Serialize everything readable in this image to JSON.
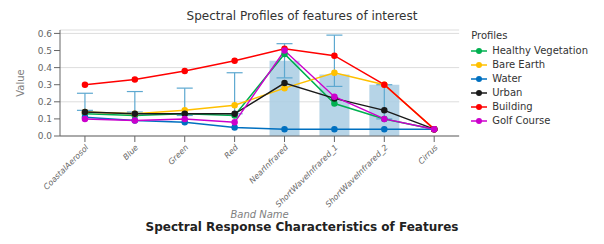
{
  "chart_data": {
    "type": "bar",
    "title": "Spectral Profiles of features of interest",
    "xlabel": "Band Name",
    "ylabel": "Value",
    "footer": "Spectral Response Characteristics of Features",
    "categories": [
      "CoastalAerosol",
      "Blue",
      "Green",
      "Red",
      "NearInfrared",
      "ShortWaveInfrared_1",
      "ShortWaveInfrared_2",
      "Cirrus"
    ],
    "values": [
      0.0,
      0.0,
      0.0,
      0.0,
      0.44,
      0.36,
      0.3,
      0.0
    ],
    "color": "#a9cce3",
    "error_bars": {
      "centers": [
        0.2,
        0.2,
        0.2,
        0.25,
        0.44,
        0.44,
        0.2,
        null
      ],
      "minus": [
        0.05,
        0.06,
        0.08,
        0.12,
        0.1,
        0.15,
        0.1,
        null
      ],
      "plus": [
        0.05,
        0.06,
        0.08,
        0.12,
        0.1,
        0.15,
        0.1,
        null
      ],
      "color": "#5da8d0"
    },
    "series": [
      {
        "name": "Healthy Vegetation",
        "type": "line",
        "marker": "o",
        "color": "#00b050",
        "values": [
          0.13,
          0.12,
          0.13,
          0.12,
          0.48,
          0.19,
          0.1,
          0.04
        ]
      },
      {
        "name": "Bare Earth",
        "type": "line",
        "marker": "o",
        "color": "#ffc000",
        "values": [
          0.14,
          0.13,
          0.15,
          0.18,
          0.28,
          0.37,
          0.3,
          0.04
        ]
      },
      {
        "name": "Water",
        "type": "line",
        "marker": "o",
        "color": "#0070c0",
        "values": [
          0.11,
          0.09,
          0.08,
          0.05,
          0.04,
          0.04,
          0.04,
          0.04
        ]
      },
      {
        "name": "Urban",
        "type": "line",
        "marker": "o",
        "color": "#1a1a1a",
        "values": [
          0.14,
          0.13,
          0.13,
          0.13,
          0.31,
          0.22,
          0.15,
          0.04
        ]
      },
      {
        "name": "Building",
        "type": "line",
        "marker": "o",
        "color": "#ff0000",
        "values": [
          0.3,
          0.33,
          0.38,
          0.44,
          0.51,
          0.47,
          0.3,
          0.04
        ]
      },
      {
        "name": "Golf Course",
        "type": "line",
        "marker": "o",
        "color": "#cc00cc",
        "values": [
          0.1,
          0.09,
          0.1,
          0.08,
          0.5,
          0.23,
          0.1,
          0.04
        ]
      }
    ],
    "legend_title": "Profiles",
    "legend": "right",
    "ylim": [
      0.0,
      0.62
    ],
    "yticks": [
      {
        "value": 0.0,
        "label": "0.0"
      },
      0.1,
      0.2,
      0.3,
      0.4,
      0.5,
      0.6
    ],
    "grid": true
  }
}
